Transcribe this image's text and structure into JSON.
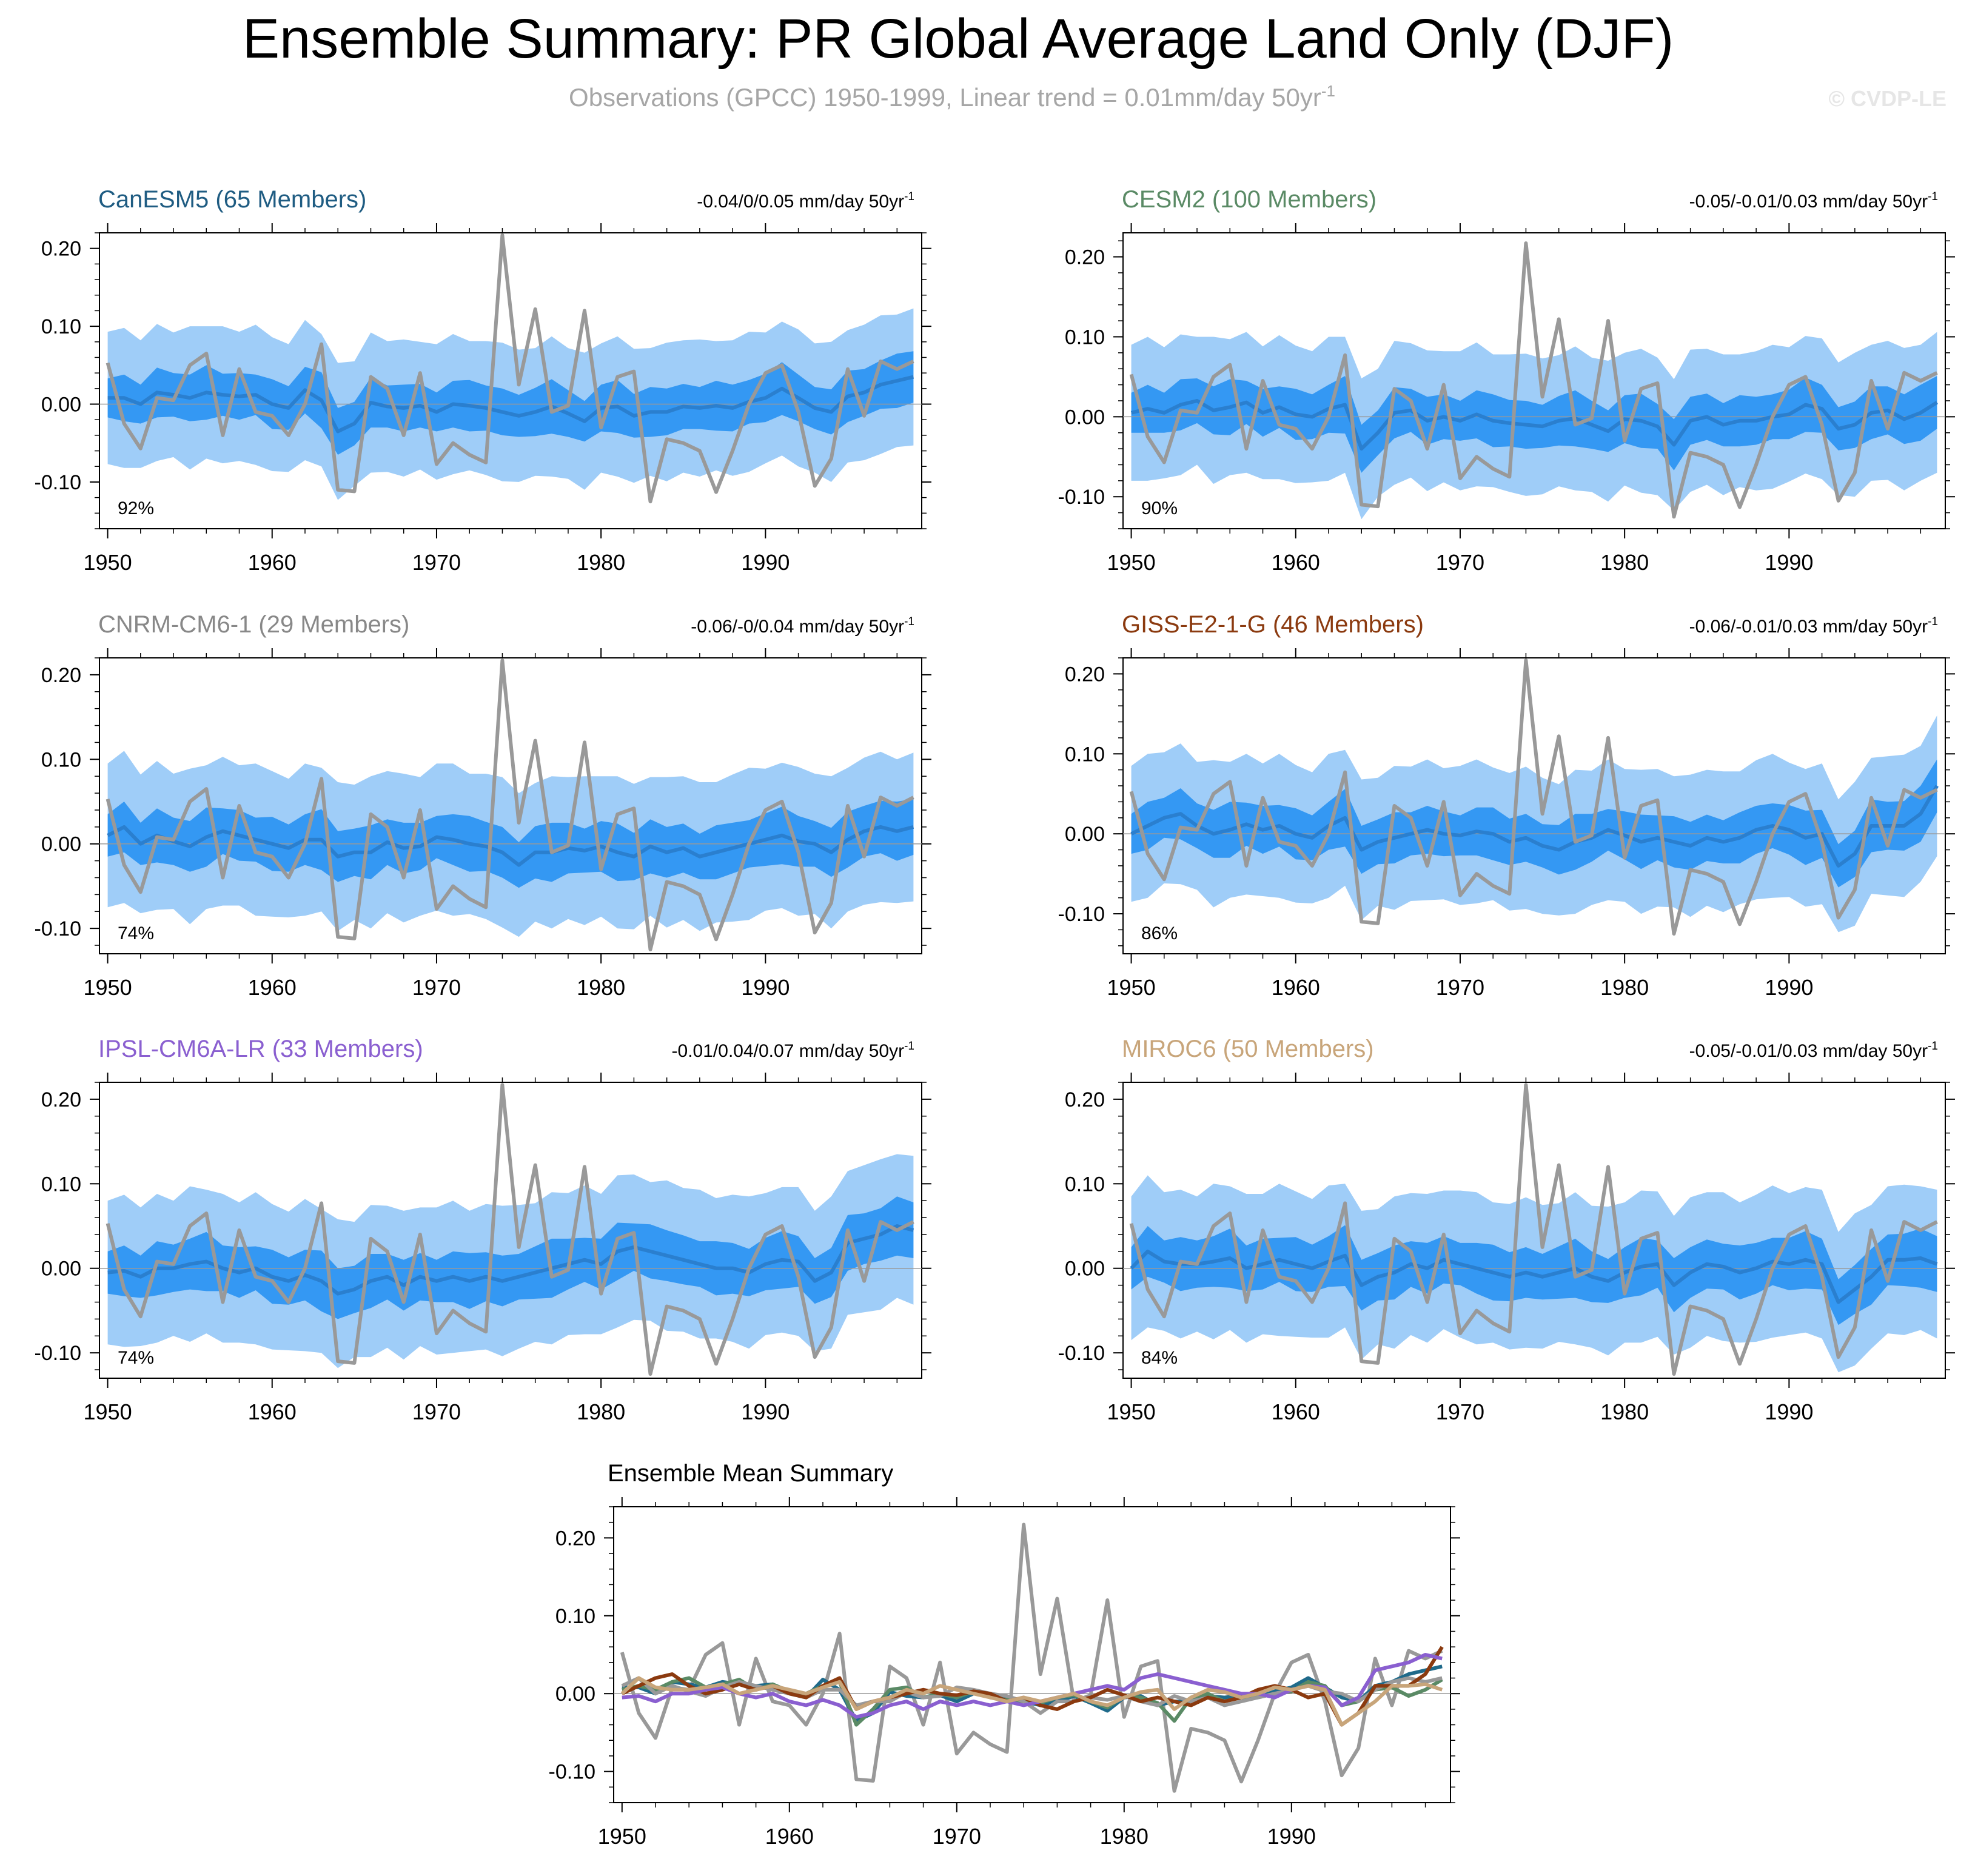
{
  "title": "Ensemble Summary: PR Global Average Land Only (DJF)",
  "subtitle": "Observations (GPCC) 1950-1999, Linear trend = 0.01mm/day 50yr",
  "subtitle_sup": "-1",
  "watermark": "© CVDP-LE",
  "colors": {
    "band_outer": "#9fcdf8",
    "band_inner": "#3498f3",
    "ens_mean_line": "#2a7fcf",
    "obs_line": "#999999",
    "zero_line": "#999999"
  },
  "chart_data": [
    {
      "type": "line",
      "id": "canesm5",
      "title": "CanESM5 (65 Members)",
      "title_color": "#1f5c82",
      "trend_text": "-0.04/0/0.05 mm/day 50yr",
      "trend_sup": "-1",
      "percent": "92%",
      "xlim": [
        1949.5,
        1999.5
      ],
      "ylim": [
        -0.16,
        0.22
      ],
      "xticks": [
        "1950",
        "1960",
        "1970",
        "1980",
        "1990"
      ],
      "yticks": [
        "0.20",
        "0.10",
        "0.00",
        "-0.10"
      ],
      "ens_mean": [
        0.008,
        0.008,
        0.0,
        0.015,
        0.012,
        0.008,
        0.015,
        0.012,
        0.01,
        0.012,
        0.0,
        -0.005,
        0.018,
        0.005,
        -0.035,
        -0.025,
        0.002,
        -0.003,
        -0.005,
        -0.002,
        -0.01,
        0.0,
        -0.002,
        -0.005,
        -0.01,
        -0.015,
        -0.01,
        -0.003,
        -0.012,
        -0.022,
        -0.005,
        -0.003,
        -0.015,
        -0.01,
        -0.01,
        -0.003,
        -0.005,
        -0.002,
        -0.005,
        0.003,
        0.008,
        0.02,
        0.008,
        -0.005,
        -0.01,
        0.01,
        0.015,
        0.025,
        0.03,
        0.035
      ],
      "obs": [
        0.053,
        -0.025,
        -0.057,
        0.008,
        0.005,
        0.05,
        0.065,
        -0.04,
        0.045,
        -0.01,
        -0.015,
        -0.04,
        0.0,
        0.077,
        -0.11,
        -0.112,
        0.035,
        0.02,
        -0.04,
        0.04,
        -0.077,
        -0.05,
        -0.065,
        -0.075,
        0.217,
        0.025,
        0.122,
        -0.01,
        -0.002,
        0.12,
        -0.03,
        0.035,
        0.042,
        -0.125,
        -0.045,
        -0.05,
        -0.06,
        -0.113,
        -0.06,
        0.0,
        0.04,
        0.05,
        -0.01,
        -0.105,
        -0.07,
        0.045,
        -0.015,
        0.055,
        0.045,
        0.055
      ]
    },
    {
      "type": "line",
      "id": "cesm2",
      "title": "CESM2 (100 Members)",
      "title_color": "#5a8a65",
      "trend_text": "-0.05/-0.01/0.03 mm/day 50yr",
      "trend_sup": "-1",
      "percent": "90%",
      "xlim": [
        1949.5,
        1999.5
      ],
      "ylim": [
        -0.14,
        0.23
      ],
      "xticks": [
        "1950",
        "1960",
        "1970",
        "1980",
        "1990"
      ],
      "yticks": [
        "0.20",
        "0.10",
        "0.00",
        "-0.10"
      ],
      "ens_mean": [
        0.005,
        0.01,
        0.005,
        0.015,
        0.02,
        0.008,
        0.012,
        0.018,
        0.005,
        0.012,
        0.003,
        0.0,
        0.01,
        0.015,
        -0.04,
        -0.02,
        0.005,
        0.008,
        -0.005,
        0.0,
        -0.005,
        0.003,
        -0.005,
        -0.008,
        -0.01,
        -0.012,
        -0.005,
        -0.002,
        -0.01,
        -0.018,
        -0.003,
        -0.005,
        -0.012,
        -0.035,
        -0.005,
        0.0,
        -0.01,
        -0.005,
        -0.005,
        0.0,
        0.003,
        0.015,
        0.01,
        -0.015,
        -0.01,
        0.005,
        0.008,
        -0.003,
        0.005,
        0.018
      ],
      "obs": [
        0.053,
        -0.025,
        -0.057,
        0.008,
        0.005,
        0.05,
        0.065,
        -0.04,
        0.045,
        -0.01,
        -0.015,
        -0.04,
        0.0,
        0.077,
        -0.11,
        -0.112,
        0.035,
        0.02,
        -0.04,
        0.04,
        -0.077,
        -0.05,
        -0.065,
        -0.075,
        0.217,
        0.025,
        0.122,
        -0.01,
        -0.002,
        0.12,
        -0.03,
        0.035,
        0.042,
        -0.125,
        -0.045,
        -0.05,
        -0.06,
        -0.113,
        -0.06,
        0.0,
        0.04,
        0.05,
        -0.01,
        -0.105,
        -0.07,
        0.045,
        -0.015,
        0.055,
        0.045,
        0.055
      ]
    },
    {
      "type": "line",
      "id": "cnrm",
      "title": "CNRM-CM6-1 (29 Members)",
      "title_color": "#888888",
      "trend_text": "-0.06/-0/0.04 mm/day 50yr",
      "trend_sup": "-1",
      "percent": "74%",
      "xlim": [
        1949.5,
        1999.5
      ],
      "ylim": [
        -0.13,
        0.22
      ],
      "xticks": [
        "1950",
        "1960",
        "1970",
        "1980",
        "1990"
      ],
      "yticks": [
        "0.20",
        "0.10",
        "0.00",
        "-0.10"
      ],
      "ens_mean": [
        0.01,
        0.02,
        0.0,
        0.01,
        0.003,
        -0.003,
        0.008,
        0.015,
        0.01,
        0.005,
        0.0,
        -0.005,
        0.005,
        0.005,
        -0.015,
        -0.01,
        -0.01,
        0.002,
        -0.005,
        -0.003,
        0.008,
        0.005,
        0.0,
        -0.003,
        -0.01,
        -0.025,
        -0.01,
        -0.01,
        -0.005,
        -0.008,
        -0.003,
        -0.01,
        -0.015,
        -0.003,
        -0.01,
        -0.005,
        -0.015,
        -0.01,
        -0.005,
        0.0,
        0.005,
        0.01,
        0.003,
        0.0,
        -0.01,
        0.005,
        0.015,
        0.02,
        0.015,
        0.02
      ],
      "obs": [
        0.053,
        -0.025,
        -0.057,
        0.008,
        0.005,
        0.05,
        0.065,
        -0.04,
        0.045,
        -0.01,
        -0.015,
        -0.04,
        0.0,
        0.077,
        -0.11,
        -0.112,
        0.035,
        0.02,
        -0.04,
        0.04,
        -0.077,
        -0.05,
        -0.065,
        -0.075,
        0.217,
        0.025,
        0.122,
        -0.01,
        -0.002,
        0.12,
        -0.03,
        0.035,
        0.042,
        -0.125,
        -0.045,
        -0.05,
        -0.06,
        -0.113,
        -0.06,
        0.0,
        0.04,
        0.05,
        -0.01,
        -0.105,
        -0.07,
        0.045,
        -0.015,
        0.055,
        0.045,
        0.055
      ]
    },
    {
      "type": "line",
      "id": "giss",
      "title": "GISS-E2-1-G (46 Members)",
      "title_color": "#8b3a0f",
      "trend_text": "-0.06/-0.01/0.03 mm/day 50yr",
      "trend_sup": "-1",
      "percent": "86%",
      "xlim": [
        1949.5,
        1999.5
      ],
      "ylim": [
        -0.15,
        0.22
      ],
      "xticks": [
        "1950",
        "1960",
        "1970",
        "1980",
        "1990"
      ],
      "yticks": [
        "0.20",
        "0.10",
        "0.00",
        "-0.10"
      ],
      "ens_mean": [
        0.0,
        0.01,
        0.02,
        0.025,
        0.01,
        0.0,
        0.005,
        0.012,
        0.005,
        0.01,
        0.0,
        -0.005,
        0.01,
        0.02,
        -0.02,
        -0.01,
        -0.005,
        0.0,
        0.005,
        0.0,
        -0.002,
        0.003,
        0.0,
        -0.01,
        -0.005,
        -0.015,
        -0.02,
        -0.01,
        -0.005,
        0.005,
        -0.002,
        -0.01,
        -0.005,
        -0.01,
        -0.015,
        -0.005,
        -0.01,
        -0.005,
        0.005,
        0.01,
        0.005,
        -0.005,
        0.0,
        -0.04,
        -0.025,
        0.01,
        0.01,
        0.01,
        0.025,
        0.06
      ],
      "obs": [
        0.053,
        -0.025,
        -0.057,
        0.008,
        0.005,
        0.05,
        0.065,
        -0.04,
        0.045,
        -0.01,
        -0.015,
        -0.04,
        0.0,
        0.077,
        -0.11,
        -0.112,
        0.035,
        0.02,
        -0.04,
        0.04,
        -0.077,
        -0.05,
        -0.065,
        -0.075,
        0.217,
        0.025,
        0.122,
        -0.01,
        -0.002,
        0.12,
        -0.03,
        0.035,
        0.042,
        -0.125,
        -0.045,
        -0.05,
        -0.06,
        -0.113,
        -0.06,
        0.0,
        0.04,
        0.05,
        -0.01,
        -0.105,
        -0.07,
        0.045,
        -0.015,
        0.055,
        0.045,
        0.055
      ]
    },
    {
      "type": "line",
      "id": "ipsl",
      "title": "IPSL-CM6A-LR (33 Members)",
      "title_color": "#8a5fd0",
      "trend_text": "-0.01/0.04/0.07 mm/day 50yr",
      "trend_sup": "-1",
      "percent": "74%",
      "xlim": [
        1949.5,
        1999.5
      ],
      "ylim": [
        -0.13,
        0.22
      ],
      "xticks": [
        "1950",
        "1960",
        "1970",
        "1980",
        "1990"
      ],
      "yticks": [
        "0.20",
        "0.10",
        "0.00",
        "-0.10"
      ],
      "ens_mean": [
        -0.005,
        -0.003,
        -0.01,
        0.0,
        0.0,
        0.005,
        0.008,
        0.0,
        -0.005,
        0.0,
        -0.01,
        -0.015,
        -0.008,
        -0.015,
        -0.03,
        -0.025,
        -0.015,
        -0.01,
        -0.02,
        -0.01,
        -0.015,
        -0.01,
        -0.015,
        -0.01,
        -0.015,
        -0.01,
        -0.005,
        0.0,
        0.005,
        0.01,
        0.005,
        0.02,
        0.025,
        0.02,
        0.015,
        0.01,
        0.005,
        0.0,
        0.0,
        -0.005,
        0.005,
        0.01,
        0.008,
        -0.015,
        -0.005,
        0.03,
        0.035,
        0.04,
        0.05,
        0.045
      ],
      "obs": [
        0.053,
        -0.025,
        -0.057,
        0.008,
        0.005,
        0.05,
        0.065,
        -0.04,
        0.045,
        -0.01,
        -0.015,
        -0.04,
        0.0,
        0.077,
        -0.11,
        -0.112,
        0.035,
        0.02,
        -0.04,
        0.04,
        -0.077,
        -0.05,
        -0.065,
        -0.075,
        0.217,
        0.025,
        0.122,
        -0.01,
        -0.002,
        0.12,
        -0.03,
        0.035,
        0.042,
        -0.125,
        -0.045,
        -0.05,
        -0.06,
        -0.113,
        -0.06,
        0.0,
        0.04,
        0.05,
        -0.01,
        -0.105,
        -0.07,
        0.045,
        -0.015,
        0.055,
        0.045,
        0.055
      ]
    },
    {
      "type": "line",
      "id": "miroc6",
      "title": "MIROC6 (50 Members)",
      "title_color": "#c8a57a",
      "trend_text": "-0.05/-0.01/0.03 mm/day 50yr",
      "trend_sup": "-1",
      "percent": "84%",
      "xlim": [
        1949.5,
        1999.5
      ],
      "ylim": [
        -0.13,
        0.22
      ],
      "xticks": [
        "1950",
        "1960",
        "1970",
        "1980",
        "1990"
      ],
      "yticks": [
        "0.20",
        "0.10",
        "0.00",
        "-0.10"
      ],
      "ens_mean": [
        0.0,
        0.02,
        0.008,
        0.005,
        0.005,
        0.008,
        0.012,
        0.0,
        0.005,
        0.01,
        0.005,
        0.0,
        0.008,
        0.015,
        -0.02,
        -0.01,
        -0.005,
        0.005,
        0.0,
        0.01,
        0.005,
        0.0,
        -0.005,
        -0.01,
        -0.005,
        -0.01,
        -0.005,
        0.0,
        -0.01,
        -0.015,
        -0.005,
        0.002,
        0.005,
        -0.02,
        -0.005,
        0.005,
        0.002,
        -0.005,
        0.0,
        0.008,
        0.005,
        0.01,
        0.005,
        -0.04,
        -0.025,
        -0.01,
        0.01,
        0.01,
        0.012,
        0.005
      ],
      "obs": [
        0.053,
        -0.025,
        -0.057,
        0.008,
        0.005,
        0.05,
        0.065,
        -0.04,
        0.045,
        -0.01,
        -0.015,
        -0.04,
        0.0,
        0.077,
        -0.11,
        -0.112,
        0.035,
        0.02,
        -0.04,
        0.04,
        -0.077,
        -0.05,
        -0.065,
        -0.075,
        0.217,
        0.025,
        0.122,
        -0.01,
        -0.002,
        0.12,
        -0.03,
        0.035,
        0.042,
        -0.125,
        -0.045,
        -0.05,
        -0.06,
        -0.113,
        -0.06,
        0.0,
        0.04,
        0.05,
        -0.01,
        -0.105,
        -0.07,
        0.045,
        -0.015,
        0.055,
        0.045,
        0.055
      ]
    },
    {
      "type": "line",
      "id": "summary",
      "title": "Ensemble Mean Summary",
      "title_color": "#000000",
      "xlim": [
        1949.5,
        1999.5
      ],
      "ylim": [
        -0.14,
        0.24
      ],
      "xticks": [
        "1950",
        "1960",
        "1970",
        "1980",
        "1990"
      ],
      "yticks": [
        "0.20",
        "0.10",
        "0.00",
        "-0.10"
      ],
      "series": [
        {
          "name": "CanESM5",
          "color": "#1f6a8a",
          "ref": 0
        },
        {
          "name": "CESM2",
          "color": "#5a8a65",
          "ref": 1
        },
        {
          "name": "CNRM-CM6-1",
          "color": "#999999",
          "ref": 2
        },
        {
          "name": "GISS-E2-1-G",
          "color": "#8b3a0f",
          "ref": 3
        },
        {
          "name": "IPSL-CM6A-LR",
          "color": "#8a5fd0",
          "ref": 4
        },
        {
          "name": "MIROC6",
          "color": "#c8a57a",
          "ref": 5
        },
        {
          "name": "Observations",
          "color": "#999999",
          "ref": "obs"
        }
      ]
    }
  ]
}
